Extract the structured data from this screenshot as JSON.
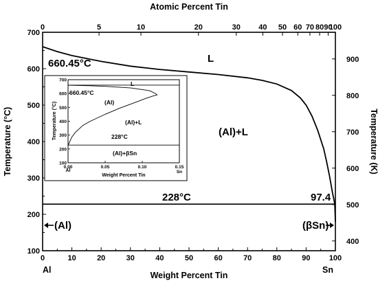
{
  "chart_data": [
    {
      "type": "line",
      "xlabel": "Weight Percent Tin",
      "ylabel": "Temperature (°C)",
      "top_xlabel": "Atomic Percent Tin",
      "right_ylabel": "Temperature (K)",
      "xlim": [
        0,
        100
      ],
      "ylim": [
        100,
        700
      ],
      "x_ticks": [
        0,
        10,
        20,
        30,
        40,
        50,
        60,
        70,
        80,
        90,
        100
      ],
      "y_ticks": [
        100,
        200,
        300,
        400,
        500,
        600,
        700
      ],
      "top_ticks": [
        {
          "at_percent": 0,
          "wt_percent": 0
        },
        {
          "at_percent": 5,
          "wt_percent": 19.27
        },
        {
          "at_percent": 10,
          "wt_percent": 33.58
        },
        {
          "at_percent": 20,
          "wt_percent": 53.23
        },
        {
          "at_percent": 30,
          "wt_percent": 66.15
        },
        {
          "at_percent": 40,
          "wt_percent": 75.22
        },
        {
          "at_percent": 50,
          "wt_percent": 81.93
        },
        {
          "at_percent": 60,
          "wt_percent": 87.16
        },
        {
          "at_percent": 70,
          "wt_percent": 91.3
        },
        {
          "at_percent": 80,
          "wt_percent": 94.62
        },
        {
          "at_percent": 90,
          "wt_percent": 97.53
        },
        {
          "at_percent": 100,
          "wt_percent": 100
        }
      ],
      "right_ticks": [
        400,
        500,
        600,
        700,
        800,
        900
      ],
      "series": [
        {
          "values": [
            [
              0,
              660.45
            ],
            [
              5,
              647
            ],
            [
              10,
              636
            ],
            [
              20,
              620
            ],
            [
              30,
              607
            ],
            [
              40,
              598
            ],
            [
              50,
              591
            ],
            [
              60,
              584
            ],
            [
              70,
              575
            ],
            [
              75,
              568
            ],
            [
              80,
              558
            ],
            [
              85,
              540
            ],
            [
              88,
              520
            ],
            [
              90,
              500
            ],
            [
              92,
              470
            ],
            [
              94,
              430
            ],
            [
              96,
              380
            ],
            [
              97,
              345
            ],
            [
              98,
              305
            ],
            [
              99,
              260
            ],
            [
              99.5,
              240
            ],
            [
              99.8,
              228
            ],
            [
              100,
              180
            ]
          ]
        }
      ],
      "eutectic": {
        "temperature": 228,
        "label": "228°C",
        "composition_label": "97.4",
        "x": [
          0,
          100
        ]
      },
      "annotations": {
        "melting_point": "660.45°C",
        "liquid": "L",
        "two_phase": "(Al)+L",
        "al_phase": "(Al)",
        "sn_phase": "(βSn)",
        "left_element": "Al",
        "right_element": "Sn"
      }
    },
    {
      "type": "line",
      "xlabel": "Weight Percent Tin",
      "ylabel": "Temperature (°C)",
      "xlim": [
        0,
        0.15
      ],
      "ylim": [
        100,
        700
      ],
      "x_tick_labels": [
        "0.00",
        "0.05",
        "0.10",
        "0.15"
      ],
      "x_end_label": "Sn",
      "left_element": "Al",
      "y_ticks": [
        100,
        200,
        300,
        400,
        500,
        600,
        700
      ],
      "series": [
        {
          "values": [
            [
              0.0,
              225
            ],
            [
              0.002,
              250
            ],
            [
              0.005,
              285
            ],
            [
              0.01,
              320
            ],
            [
              0.02,
              370
            ],
            [
              0.03,
              400
            ],
            [
              0.05,
              450
            ],
            [
              0.07,
              495
            ],
            [
              0.09,
              535
            ],
            [
              0.105,
              565
            ],
            [
              0.115,
              583
            ],
            [
              0.12,
              590
            ],
            [
              0.118,
              600
            ],
            [
              0.11,
              620
            ],
            [
              0.085,
              640
            ],
            [
              0.05,
              652
            ],
            [
              0.02,
              658
            ],
            [
              0.0,
              660.45
            ]
          ]
        }
      ],
      "liquidus_temperature": 660.45,
      "eutectic_temperature": 228,
      "annotations": {
        "liquid": "L",
        "melting_point": "660.45°C",
        "al_phase": "(Al)",
        "two_phase": "(Al)+L",
        "eutectic": "228°C",
        "low_region": "(Al)+βSn"
      }
    }
  ]
}
